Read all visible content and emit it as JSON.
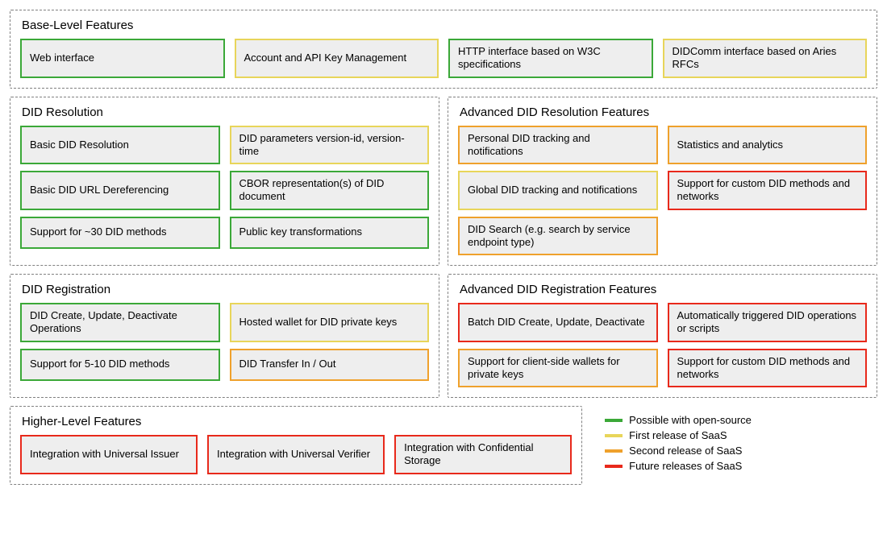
{
  "colors": {
    "green": "#3ba838",
    "yellow": "#e8d55a",
    "orange": "#efa12c",
    "red": "#e8291b",
    "itemBg": "#eeeeee",
    "dash": "#808080"
  },
  "legend": [
    {
      "color": "green",
      "label": "Possible with open-source"
    },
    {
      "color": "yellow",
      "label": "First release of SaaS"
    },
    {
      "color": "orange",
      "label": "Second release of SaaS"
    },
    {
      "color": "red",
      "label": "Future releases of SaaS"
    }
  ],
  "sections": {
    "base": {
      "title": "Base-Level Features",
      "items": [
        {
          "label": "Web interface",
          "color": "green"
        },
        {
          "label": "Account and API Key Management",
          "color": "yellow"
        },
        {
          "label": "HTTP interface based on W3C specifications",
          "color": "green"
        },
        {
          "label": "DIDComm interface based on Aries RFCs",
          "color": "yellow"
        }
      ]
    },
    "didResolution": {
      "title": "DID Resolution",
      "items": [
        {
          "label": "Basic DID Resolution",
          "color": "green"
        },
        {
          "label": "DID parameters version-id, version-time",
          "color": "yellow"
        },
        {
          "label": "Basic DID URL Dereferencing",
          "color": "green"
        },
        {
          "label": "CBOR representation(s) of DID document",
          "color": "green"
        },
        {
          "label": "Support for ~30 DID methods",
          "color": "green"
        },
        {
          "label": "Public key transformations",
          "color": "green"
        }
      ]
    },
    "advResolution": {
      "title": "Advanced DID Resolution Features",
      "items": [
        {
          "label": "Personal DID tracking and notifications",
          "color": "orange"
        },
        {
          "label": "Statistics and analytics",
          "color": "orange"
        },
        {
          "label": "Global DID tracking and notifications",
          "color": "yellow"
        },
        {
          "label": "Support for custom DID methods and networks",
          "color": "red"
        },
        {
          "label": "DID Search (e.g. search by service endpoint type)",
          "color": "orange"
        },
        {
          "label": "",
          "color": "",
          "empty": true
        }
      ]
    },
    "didRegistration": {
      "title": "DID Registration",
      "items": [
        {
          "label": "DID Create, Update, Deactivate Operations",
          "color": "green"
        },
        {
          "label": "Hosted wallet for DID private keys",
          "color": "yellow"
        },
        {
          "label": "Support for 5-10 DID methods",
          "color": "green"
        },
        {
          "label": "DID Transfer In / Out",
          "color": "orange"
        }
      ]
    },
    "advRegistration": {
      "title": "Advanced DID Registration Features",
      "items": [
        {
          "label": "Batch DID Create, Update, Deactivate",
          "color": "red"
        },
        {
          "label": "Automatically triggered DID operations or scripts",
          "color": "red"
        },
        {
          "label": "Support for client-side wallets for private keys",
          "color": "orange"
        },
        {
          "label": "Support for custom DID methods and networks",
          "color": "red"
        }
      ]
    },
    "higher": {
      "title": "Higher-Level Features",
      "items": [
        {
          "label": "Integration with Universal Issuer",
          "color": "red"
        },
        {
          "label": "Integration with Universal Verifier",
          "color": "red"
        },
        {
          "label": "Integration with Confidential Storage",
          "color": "red"
        }
      ]
    }
  }
}
